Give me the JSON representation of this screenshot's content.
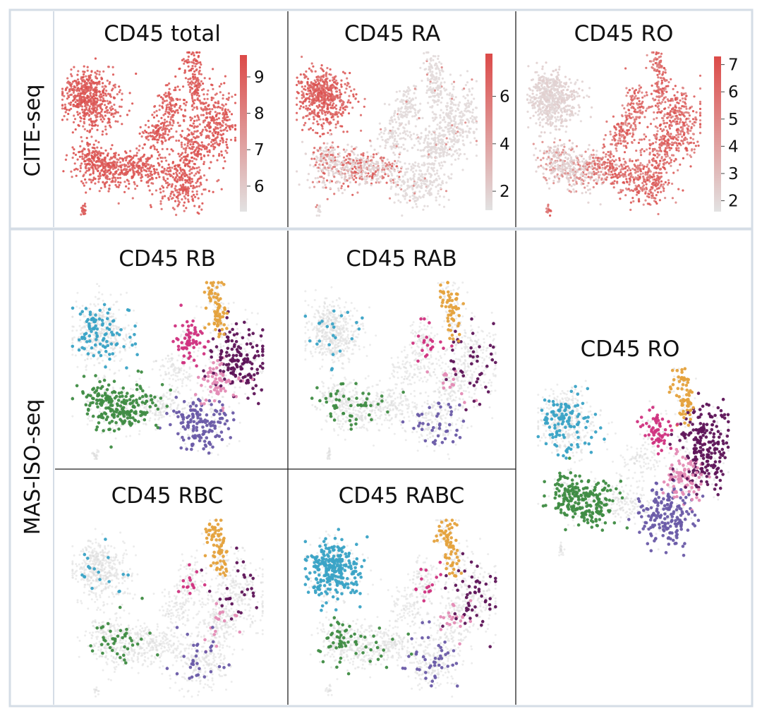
{
  "row_labels": {
    "top": "CITE-seq",
    "bottom": "MAS-ISO-seq"
  },
  "cite_panels": [
    {
      "title": "CD45 total",
      "colorbar_ticks": [
        "6",
        "7",
        "8",
        "9"
      ],
      "tick_values": [
        6,
        7,
        8,
        9
      ],
      "range": [
        5.3,
        9.6
      ]
    },
    {
      "title": "CD45 RA",
      "colorbar_ticks": [
        "2",
        "4",
        "6"
      ],
      "tick_values": [
        2,
        4,
        6
      ],
      "range": [
        1.2,
        7.8
      ]
    },
    {
      "title": "CD45 RO",
      "colorbar_ticks": [
        "2",
        "3",
        "4",
        "5",
        "6",
        "7"
      ],
      "tick_values": [
        2,
        3,
        4,
        5,
        6,
        7
      ],
      "range": [
        1.6,
        7.3
      ]
    }
  ],
  "iso_panels": [
    {
      "title": "CD45 RB"
    },
    {
      "title": "CD45 RAB"
    },
    {
      "title": "CD45 RBC"
    },
    {
      "title": "CD45 RABC"
    },
    {
      "title": "CD45 RO"
    }
  ],
  "colors": {
    "frame_border": "#d5dde6",
    "divider": "#222222",
    "scale_high": "#dc4a48",
    "scale_low": "#e2e2e2",
    "background_cells": "#dcdcdc",
    "cluster_teal": "#3aa3c6",
    "cluster_orange": "#e5a23d",
    "cluster_magenta": "#d0317f",
    "cluster_purple": "#5e1458",
    "cluster_pink": "#e48bb5",
    "cluster_green": "#3f8c43",
    "cluster_violet": "#6a5ba8"
  }
}
